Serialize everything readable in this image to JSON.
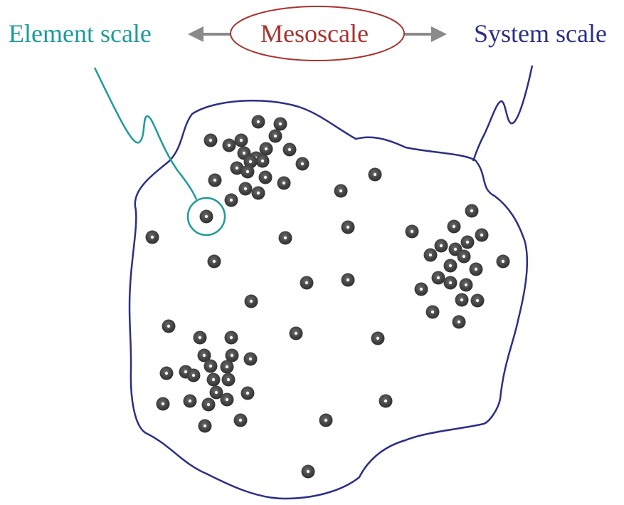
{
  "labels": {
    "element_scale": "Element scale",
    "mesoscale": "Mesoscale",
    "system_scale": "System scale"
  },
  "colors": {
    "element": "#1e9a9a",
    "mesoscale": "#a8332e",
    "system": "#2b2f86",
    "arrow": "#8a8a8a",
    "particle": "#3a3a3a",
    "particle_highlight": "#f2f2f2"
  }
}
